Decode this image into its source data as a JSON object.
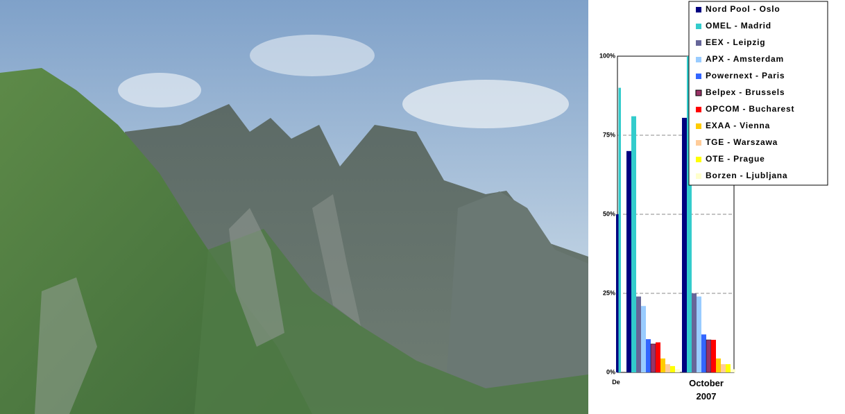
{
  "chart_data": {
    "type": "bar",
    "categories": [
      "De",
      null,
      "October 2007"
    ],
    "series": [
      {
        "name": "Nord Pool - Oslo",
        "color": "#000080",
        "values": [
          50,
          70,
          80.5
        ]
      },
      {
        "name": "OMEL - Madrid",
        "color": "#33cccc",
        "values": [
          90,
          81,
          100
        ]
      },
      {
        "name": "EEX - Leipzig",
        "color": "#666699",
        "values": [
          null,
          24,
          25
        ]
      },
      {
        "name": "APX - Amsterdam",
        "color": "#99ccff",
        "values": [
          null,
          21,
          24
        ]
      },
      {
        "name": "Powernext - Paris",
        "color": "#3366ff",
        "values": [
          null,
          10.5,
          12
        ]
      },
      {
        "name": "Belpex - Brussels",
        "color": "#993366",
        "values": [
          null,
          9,
          10.3
        ]
      },
      {
        "name": "OPCOM - Bucharest",
        "color": "#ff0000",
        "values": [
          null,
          9.5,
          10.3
        ]
      },
      {
        "name": "EXAA - Vienna",
        "color": "#ffcc00",
        "values": [
          null,
          4.4,
          4.4
        ]
      },
      {
        "name": "TGE - Warszawa",
        "color": "#ffcc99",
        "values": [
          null,
          2.6,
          2.6
        ]
      },
      {
        "name": "OTE - Prague",
        "color": "#ffff00",
        "values": [
          null,
          2,
          2.6
        ]
      },
      {
        "name": "Borzen - Ljubljana",
        "color": "#ffffcc",
        "values": [
          null,
          1,
          1
        ]
      }
    ],
    "ylim": [
      0,
      100
    ],
    "yticks": [
      {
        "value": 0,
        "label": "0%"
      },
      {
        "value": 25,
        "label": "25%"
      },
      {
        "value": 50,
        "label": "50%"
      },
      {
        "value": 75,
        "label": "75%"
      },
      {
        "value": 100,
        "label": "100%"
      }
    ],
    "grid": true,
    "legend": "top-right"
  }
}
